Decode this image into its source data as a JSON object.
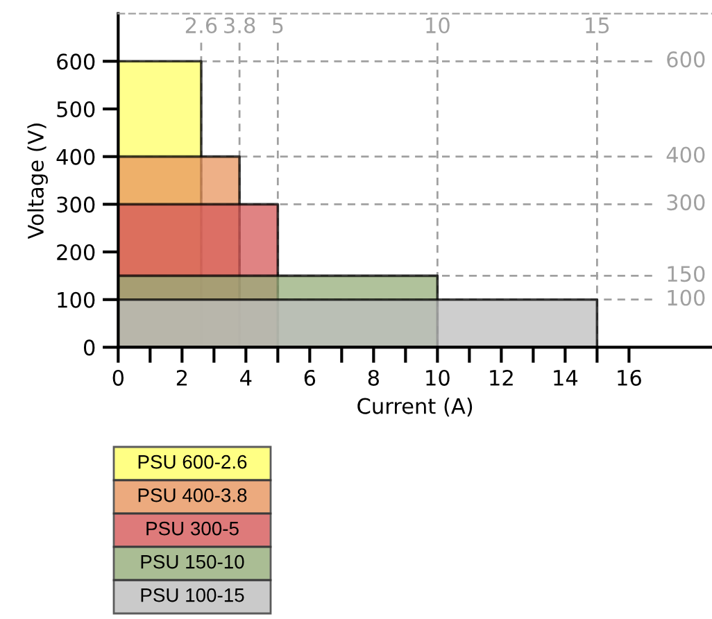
{
  "chart_data": {
    "type": "area",
    "xlabel": "Current (A)",
    "ylabel": "Voltage (V)",
    "xlim": [
      0,
      18.6
    ],
    "ylim": [
      0,
      700
    ],
    "xticks": [
      0,
      {
        "value": 1,
        "label": null
      },
      2,
      {
        "value": 3,
        "label": null
      },
      4,
      {
        "value": 5,
        "label": null
      },
      6,
      {
        "value": 7,
        "label": null
      },
      8,
      {
        "value": 9,
        "label": null
      },
      10,
      {
        "value": 11,
        "label": null
      },
      12,
      {
        "value": 13,
        "label": null
      },
      14,
      {
        "value": 15,
        "label": null
      },
      16
    ],
    "yticks": [
      0,
      100,
      200,
      300,
      400,
      500,
      600
    ],
    "legend": "bottom left",
    "grid": false,
    "series": [
      {
        "name": "PSU 600-2.6",
        "color": "#ffff66",
        "x": [
          0,
          2.6
        ],
        "values": [
          600,
          600
        ]
      },
      {
        "name": "PSU 400-3.8",
        "color": "#e8955f",
        "x": [
          0,
          3.8
        ],
        "values": [
          400,
          400
        ]
      },
      {
        "name": "PSU 300-5",
        "color": "#d65a5a",
        "x": [
          0,
          5
        ],
        "values": [
          300,
          300
        ]
      },
      {
        "name": "PSU 150-10",
        "color": "#96ad7a",
        "x": [
          0,
          10
        ],
        "values": [
          150,
          150
        ]
      },
      {
        "name": "PSU 100-15",
        "color": "#bdbdbd",
        "x": [
          0,
          15
        ],
        "values": [
          100,
          100
        ]
      }
    ],
    "ref_lines": [
      {
        "axis": "x",
        "value": 2.6,
        "label": "2.6",
        "color": "#a0a0a0",
        "line_style": "dashed"
      },
      {
        "axis": "x",
        "value": 3.8,
        "label": "3.8",
        "color": "#a0a0a0",
        "line_style": "dashed"
      },
      {
        "axis": "x",
        "value": 5,
        "label": "5",
        "color": "#a0a0a0",
        "line_style": "dashed"
      },
      {
        "axis": "x",
        "value": 10,
        "label": "10",
        "color": "#a0a0a0",
        "line_style": "dashed"
      },
      {
        "axis": "x",
        "value": 15,
        "label": "15",
        "color": "#a0a0a0",
        "line_style": "dashed"
      },
      {
        "axis": "y",
        "value": 600,
        "label": "600",
        "color": "#a0a0a0",
        "line_style": "dashed"
      },
      {
        "axis": "y",
        "value": 400,
        "label": "400",
        "color": "#a0a0a0",
        "line_style": "dashed"
      },
      {
        "axis": "y",
        "value": 300,
        "label": "300",
        "color": "#a0a0a0",
        "line_style": "dashed"
      },
      {
        "axis": "y",
        "value": 150,
        "label": "150",
        "color": "#a0a0a0",
        "line_style": "dashed"
      },
      {
        "axis": "y",
        "value": 100,
        "label": "100",
        "color": "#a0a0a0",
        "line_style": "dashed"
      }
    ]
  }
}
